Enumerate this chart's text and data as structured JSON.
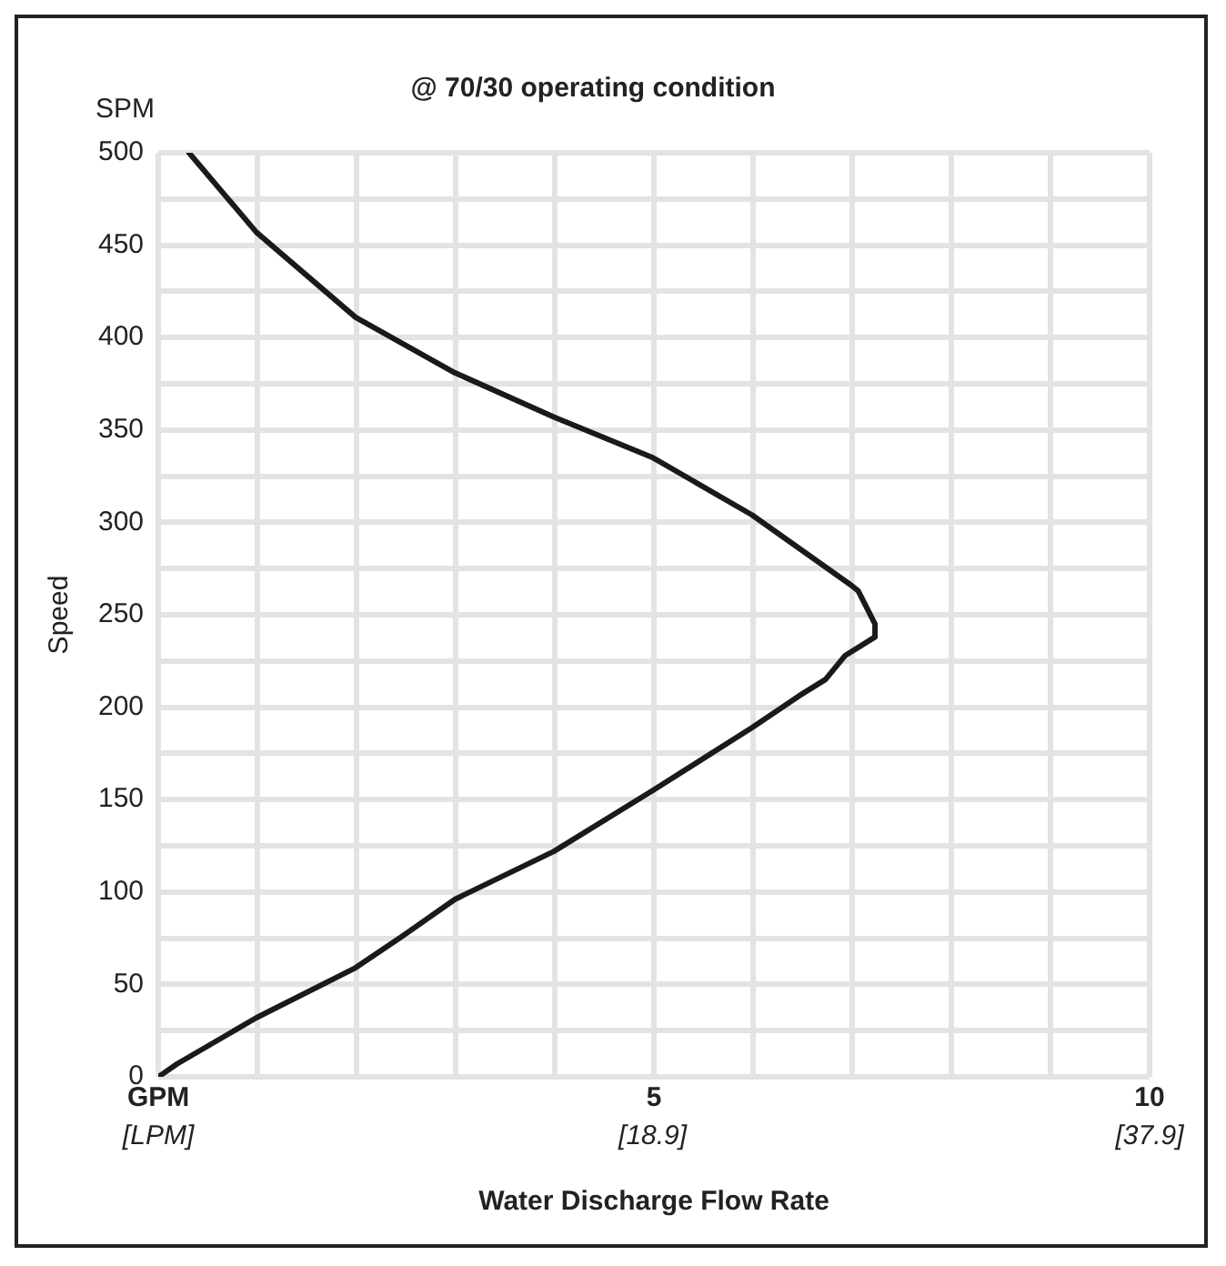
{
  "chart_data": {
    "type": "line",
    "subtitle": "@ 70/30 operating condition",
    "xlabel": "Water Discharge Flow Rate",
    "ylabel": "Speed",
    "annotations": [
      "SPM"
    ],
    "x": [
      0,
      0.19,
      0.99,
      1.99,
      2.46,
      2.99,
      3.99,
      4.99,
      5.99,
      6.46,
      6.73,
      6.93,
      7.23,
      7.23,
      7.06,
      6.99,
      5.99,
      4.99,
      3.99,
      2.99,
      1.99,
      0.99,
      0.31
    ],
    "series": [
      {
        "color": "#1a1a1a",
        "values": [
          0,
          7,
          32,
          59,
          76,
          96,
          122,
          155,
          189,
          206,
          215,
          228,
          238,
          245,
          263,
          266,
          304,
          335,
          357,
          381,
          411,
          457,
          500
        ]
      }
    ],
    "xlim": [
      0,
      10
    ],
    "xticks": [
      {
        "value": 0,
        "label": "GPM"
      },
      {
        "value": 1,
        "label": null
      },
      {
        "value": 2,
        "label": null
      },
      {
        "value": 3,
        "label": null
      },
      {
        "value": 4,
        "label": null
      },
      5,
      {
        "value": 6,
        "label": null
      },
      {
        "value": 7,
        "label": null
      },
      {
        "value": 8,
        "label": null
      },
      {
        "value": 9,
        "label": null
      },
      10
    ],
    "x2lim": [
      0,
      37.9
    ],
    "x2ticks": [
      {
        "value": 0,
        "label": "[LPM]"
      },
      {
        "value": 18.9,
        "label": "[18.9]"
      },
      {
        "value": 37.9,
        "label": "[37.9]"
      }
    ],
    "ylim": [
      0,
      500
    ],
    "yticks": [
      0,
      {
        "value": 25,
        "label": null
      },
      50,
      {
        "value": 75,
        "label": null
      },
      100,
      {
        "value": 125,
        "label": null
      },
      150,
      {
        "value": 175,
        "label": null
      },
      200,
      {
        "value": 225,
        "label": null
      },
      250,
      {
        "value": 275,
        "label": null
      },
      300,
      {
        "value": 325,
        "label": null
      },
      350,
      {
        "value": 375,
        "label": null
      },
      400,
      {
        "value": 425,
        "label": null
      },
      450,
      {
        "value": 475,
        "label": null
      },
      500
    ],
    "grid": true,
    "marker": "none",
    "line_style": "solid"
  }
}
